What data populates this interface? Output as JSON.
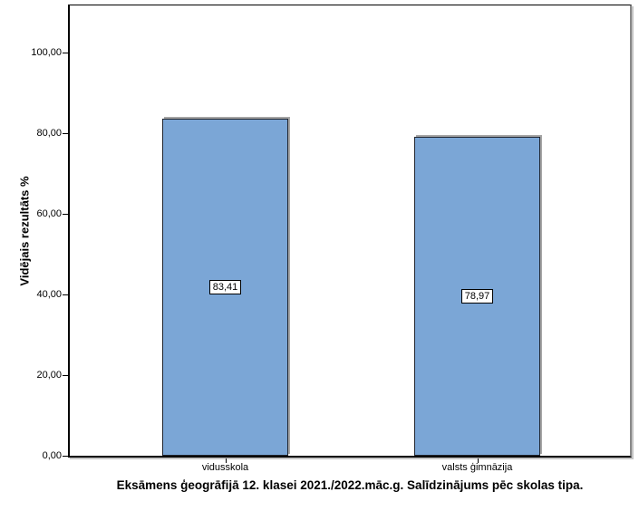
{
  "chart_data": {
    "type": "bar",
    "title": "Eksāmens ģeogrāfijā 12. klasei 2021./2022.māc.g. Salīdzinājums pēc skolas tipa.",
    "ylabel": "Vidējais rezultāts %",
    "xlabel": "",
    "categories": [
      "vidusskola",
      "valsts ģimnāzija"
    ],
    "values": [
      83.41,
      78.97
    ],
    "value_labels": [
      "83,41",
      "78,97"
    ],
    "ylim": [
      0,
      100
    ],
    "ytick_labels": [
      "0,00",
      "20,00",
      "40,00",
      "60,00",
      "80,00",
      "100,00"
    ],
    "grid": false,
    "legend_position": "none",
    "bar_color": "#7BA6D6",
    "bar_border_color": "#20242e",
    "background": "#FFFFFF"
  }
}
